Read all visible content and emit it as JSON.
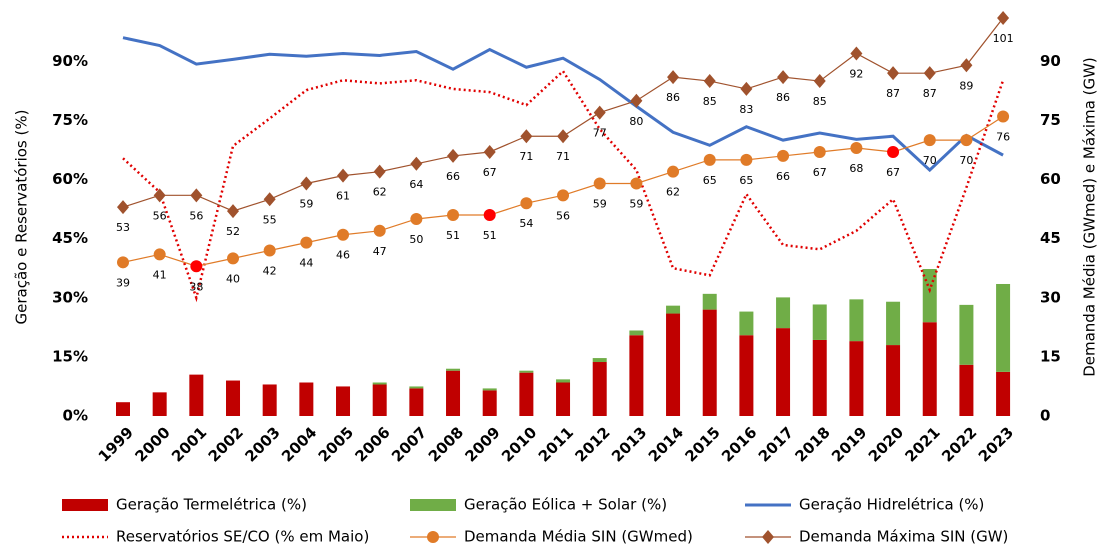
{
  "chart_data": {
    "type": "bar-line-combo",
    "categories": [
      "1999",
      "2000",
      "2001",
      "2002",
      "2003",
      "2004",
      "2005",
      "2006",
      "2007",
      "2008",
      "2009",
      "2010",
      "2011",
      "2012",
      "2013",
      "2014",
      "2015",
      "2016",
      "2017",
      "2018",
      "2019",
      "2020",
      "2021",
      "2022",
      "2023"
    ],
    "y_label": "Geração e Reservatórios (%)",
    "y2_label": "Demanda Média (GWmed) e Máxima (GW)",
    "ylim": [
      0,
      101
    ],
    "yticks": [
      {
        "value": 0,
        "label": "0%"
      },
      {
        "value": 15,
        "label": "15%"
      },
      {
        "value": 30,
        "label": "30%"
      },
      {
        "value": 45,
        "label": "45%"
      },
      {
        "value": 60,
        "label": "60%"
      },
      {
        "value": 75,
        "label": "75%"
      },
      {
        "value": 90,
        "label": "90%"
      }
    ],
    "y2lim": [
      0,
      101
    ],
    "y2ticks": [
      0,
      15,
      30,
      45,
      60,
      75,
      90
    ],
    "series": [
      {
        "name": "Geração Termelétrica (%)",
        "style": "bar",
        "color": "#c00000",
        "values": [
          3.5,
          6,
          10.5,
          9,
          8,
          8.5,
          7.5,
          8,
          7,
          11.5,
          6.5,
          11,
          8.5,
          13.7,
          20.5,
          26,
          27,
          20.5,
          22.3,
          19.3,
          19,
          18,
          23.8,
          13,
          11.2
        ]
      },
      {
        "name": "Geração Eólica + Solar (%)",
        "style": "bar",
        "color": "#70ad47",
        "values": [
          0,
          0,
          0,
          0,
          0,
          0,
          0,
          0.5,
          0.5,
          0.5,
          0.5,
          0.5,
          0.8,
          1,
          1.2,
          2,
          4,
          6,
          7.8,
          9,
          10.6,
          11,
          13.5,
          15.2,
          22.3
        ]
      },
      {
        "name": "Geração Hidrelétrica (%)",
        "style": "line",
        "color": "#4472c4",
        "values": [
          96,
          94,
          89.3,
          90.5,
          91.8,
          91.3,
          92,
          91.5,
          92.5,
          88,
          93,
          88.5,
          90.8,
          85.4,
          78.6,
          72,
          68.7,
          73.4,
          70,
          71.8,
          70.2,
          71,
          62.4,
          71.2,
          66.2
        ]
      },
      {
        "name": "Reservatórios SE/CO (% em Maio)",
        "style": "dotted",
        "color": "#e00000",
        "values": [
          65.4,
          56.8,
          30,
          68.5,
          75.5,
          82.7,
          85.2,
          84.4,
          85.2,
          83,
          82.2,
          78.9,
          87.5,
          72.8,
          62.4,
          37.5,
          35.7,
          56.3,
          43.4,
          42.3,
          47,
          55,
          32,
          58,
          85.2
        ]
      },
      {
        "name": "Demanda Média SIN (GWmed)",
        "style": "circle",
        "axis": "y2",
        "color": "#e07b28",
        "highlight_color": "#ff0000",
        "highlight_points": [
          2,
          10,
          21
        ],
        "values": [
          39,
          41,
          38,
          40,
          42,
          44,
          46,
          47,
          50,
          51,
          51,
          54,
          56,
          59,
          59,
          62,
          65,
          65,
          66,
          67,
          68,
          67,
          70,
          70,
          76
        ]
      },
      {
        "name": "Demanda Máxima SIN (GW)",
        "style": "diamond",
        "axis": "y2",
        "color": "#a0522d",
        "values": [
          53,
          56,
          56,
          52,
          55,
          59,
          61,
          62,
          64,
          66,
          67,
          71,
          71,
          77,
          80,
          86,
          85,
          83,
          86,
          85,
          92,
          87,
          87,
          89,
          101
        ]
      }
    ]
  }
}
